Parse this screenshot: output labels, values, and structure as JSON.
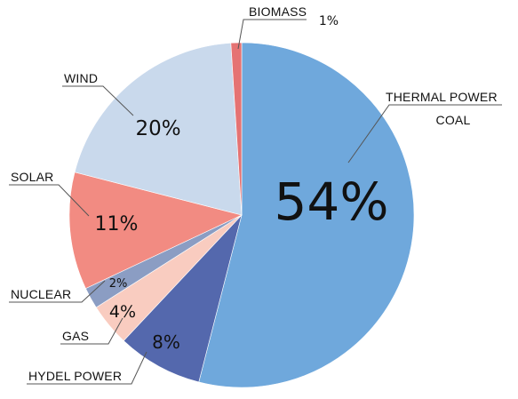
{
  "chart_data": {
    "type": "pie",
    "title": "",
    "slices": [
      {
        "label": "THERMAL POWER",
        "sublabel": "COAL",
        "value": 54,
        "pct_label": "54%",
        "color": "#6fa8dc"
      },
      {
        "label": "HYDEL POWER",
        "value": 8,
        "pct_label": "8%",
        "color": "#5468ad"
      },
      {
        "label": "GAS",
        "value": 4,
        "pct_label": "4%",
        "color": "#f9ccc0"
      },
      {
        "label": "NUCLEAR",
        "value": 2,
        "pct_label": "2%",
        "color": "#8b9dc3"
      },
      {
        "label": "SOLAR",
        "value": 11,
        "pct_label": "11%",
        "color": "#f28b82"
      },
      {
        "label": "WIND",
        "value": 20,
        "pct_label": "20%",
        "color": "#c9d9ec"
      },
      {
        "label": "BIOMASS",
        "value": 1,
        "pct_label": "1%",
        "color": "#e57373"
      }
    ]
  }
}
